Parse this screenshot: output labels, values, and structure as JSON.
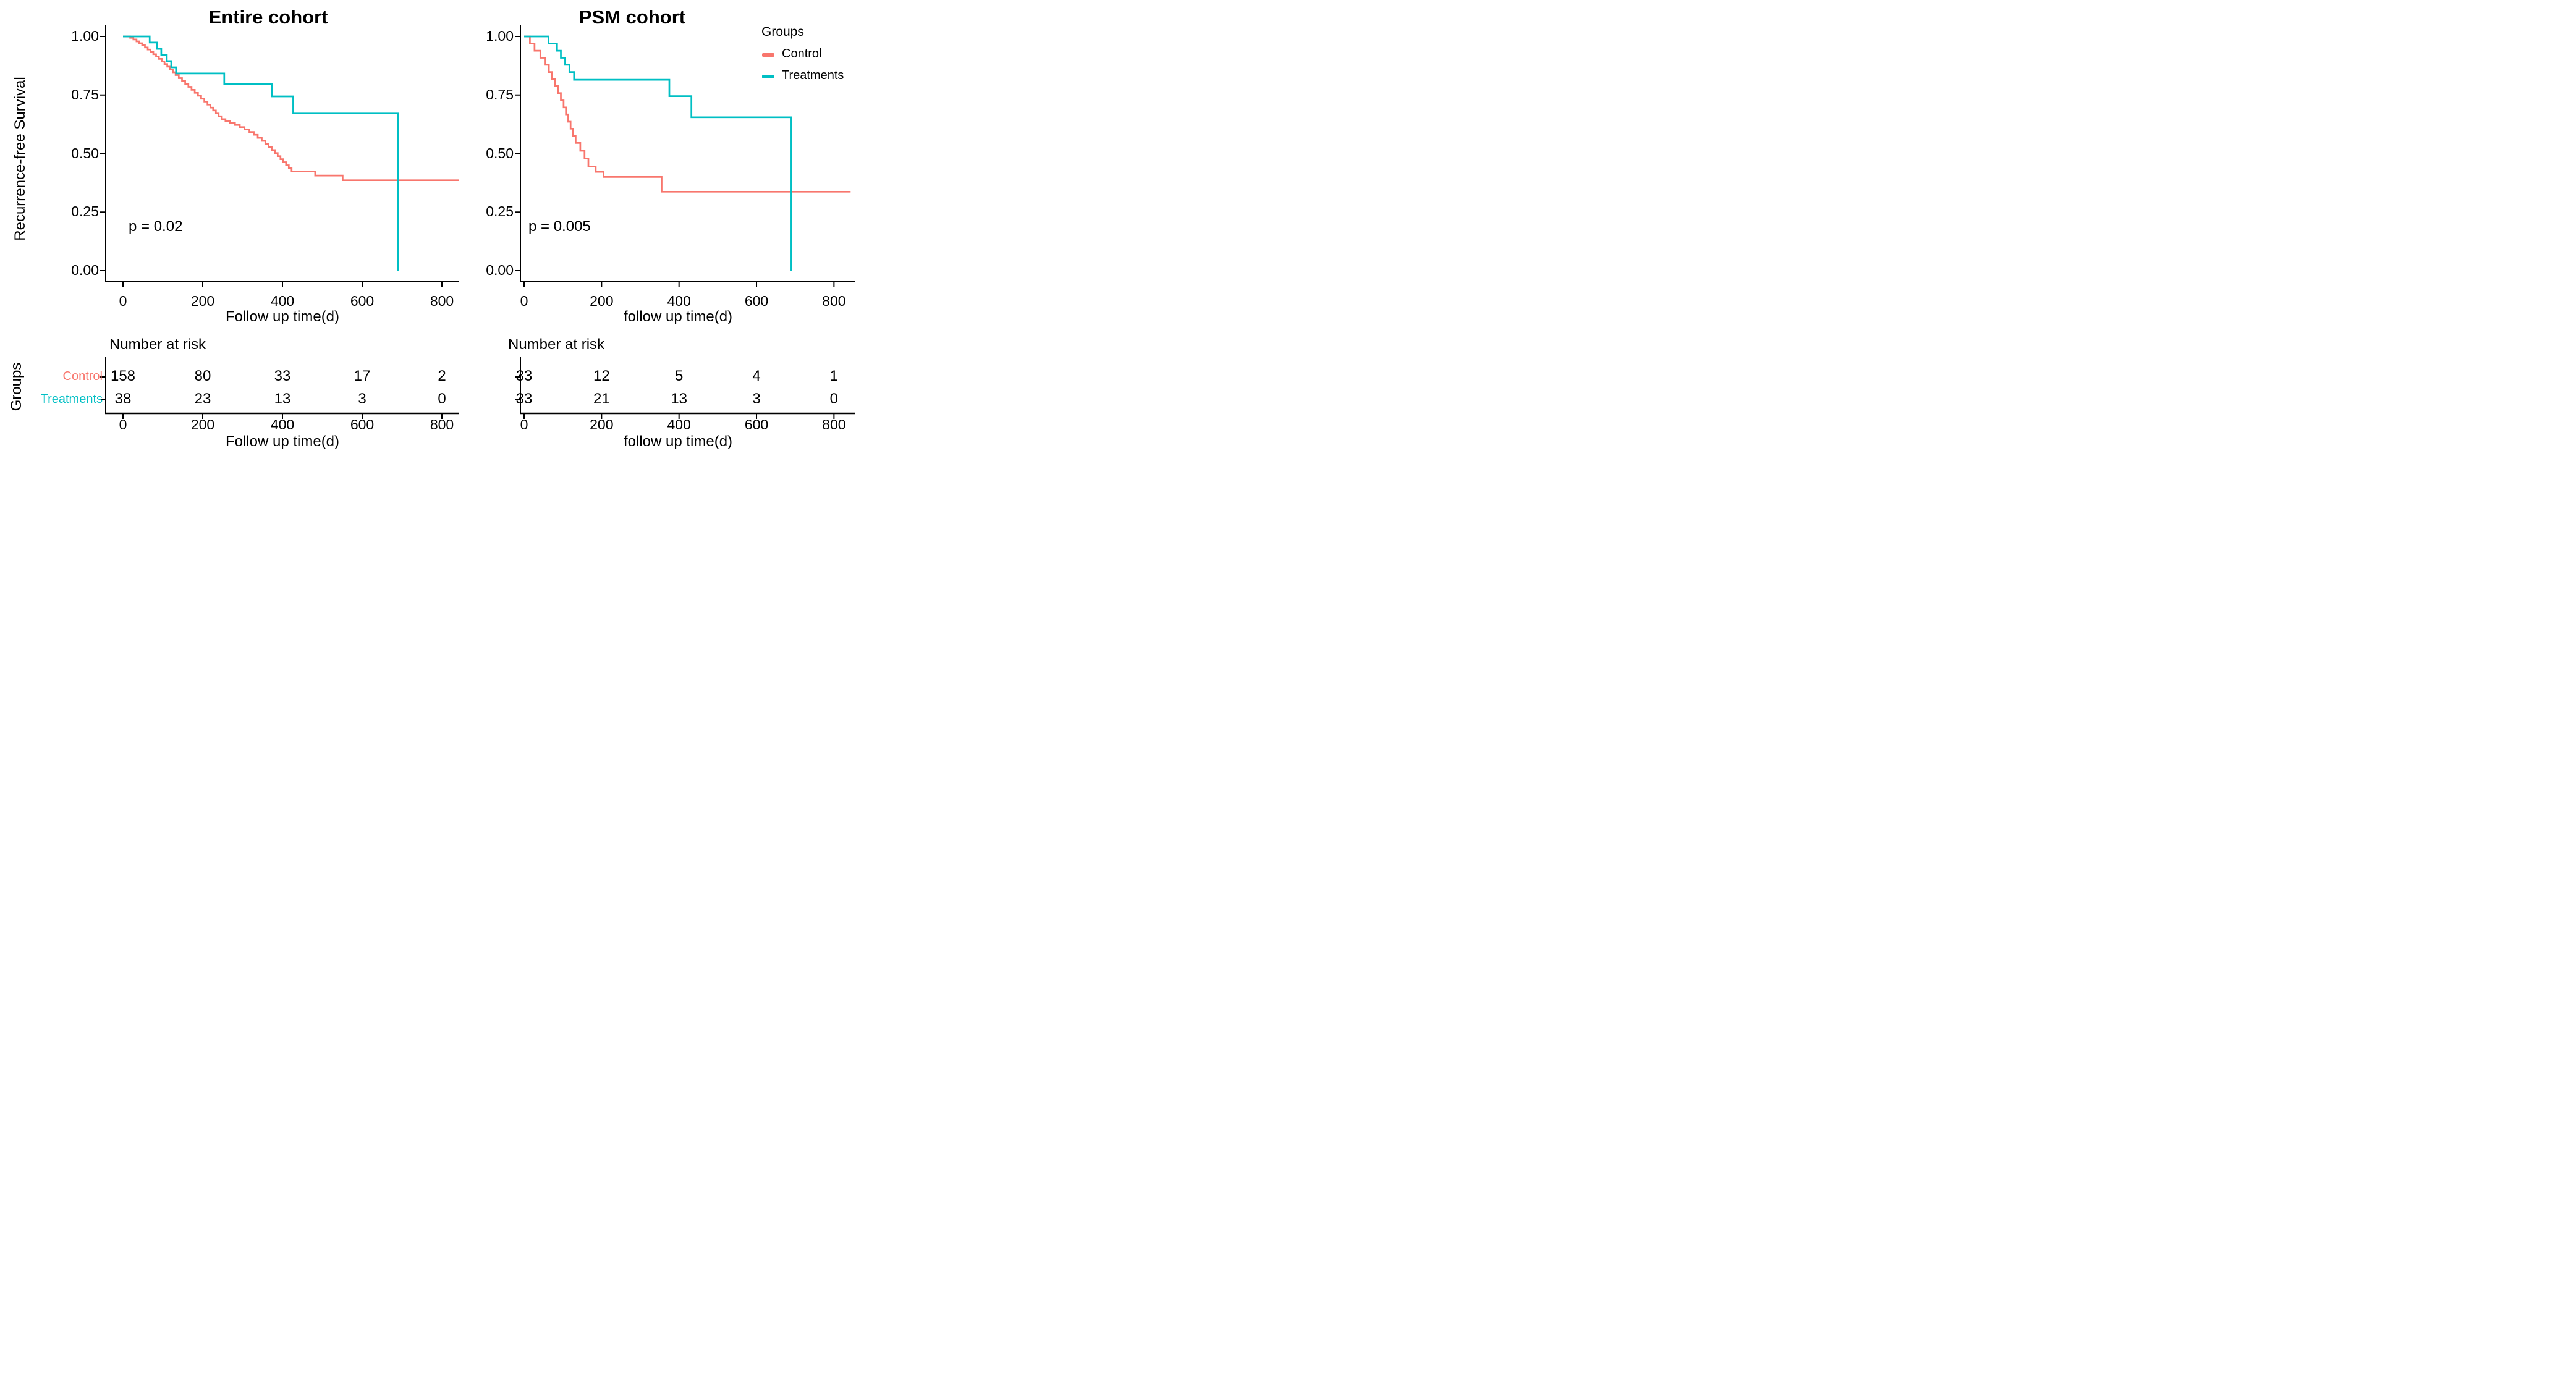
{
  "figure": {
    "background": "#ffffff",
    "text_color": "#000000"
  },
  "legend": {
    "title": "Groups",
    "items": [
      {
        "label": "Control",
        "color": "#F8766D"
      },
      {
        "label": "Treatments",
        "color": "#00BFC4"
      }
    ],
    "position": "top-right"
  },
  "chart_data": [
    {
      "type": "line",
      "subtype": "kaplan-meier-step",
      "title": "Entire cohort",
      "ylabel": "Recurrence-free Survival",
      "xlabel": "Follow up time(d)",
      "p_label": "p = 0.02",
      "xlim": [
        0,
        843
      ],
      "ylim": [
        0,
        1
      ],
      "grid": false,
      "y_ticks": [
        {
          "label": "1.00",
          "value": 1.0
        },
        {
          "label": "0.75",
          "value": 0.75
        },
        {
          "label": "0.50",
          "value": 0.5
        },
        {
          "label": "0.25",
          "value": 0.25
        },
        {
          "label": "0.00",
          "value": 0.0
        }
      ],
      "x_ticks": [
        {
          "label": "0",
          "value": 0
        },
        {
          "label": "200",
          "value": 200
        },
        {
          "label": "400",
          "value": 400
        },
        {
          "label": "600",
          "value": 600
        },
        {
          "label": "800",
          "value": 800
        }
      ],
      "series": [
        {
          "name": "Control",
          "color": "#F8766D",
          "extend_to": 843,
          "steps": [
            [
              0,
              1
            ],
            [
              18,
              0.994
            ],
            [
              26,
              0.987
            ],
            [
              34,
              0.979
            ],
            [
              41,
              0.971
            ],
            [
              48,
              0.962
            ],
            [
              55,
              0.953
            ],
            [
              62,
              0.944
            ],
            [
              69,
              0.934
            ],
            [
              76,
              0.924
            ],
            [
              83,
              0.914
            ],
            [
              90,
              0.904
            ],
            [
              97,
              0.893
            ],
            [
              104,
              0.882
            ],
            [
              111,
              0.871
            ],
            [
              118,
              0.859
            ],
            [
              125,
              0.847
            ],
            [
              132,
              0.835
            ],
            [
              140,
              0.822
            ],
            [
              148,
              0.81
            ],
            [
              156,
              0.797
            ],
            [
              164,
              0.785
            ],
            [
              172,
              0.772
            ],
            [
              180,
              0.759
            ],
            [
              188,
              0.747
            ],
            [
              196,
              0.734
            ],
            [
              204,
              0.722
            ],
            [
              212,
              0.709
            ],
            [
              219,
              0.696
            ],
            [
              226,
              0.684
            ],
            [
              233,
              0.671
            ],
            [
              240,
              0.659
            ],
            [
              248,
              0.647
            ],
            [
              257,
              0.638
            ],
            [
              268,
              0.63
            ],
            [
              281,
              0.622
            ],
            [
              293,
              0.613
            ],
            [
              305,
              0.603
            ],
            [
              317,
              0.592
            ],
            [
              328,
              0.58
            ],
            [
              338,
              0.567
            ],
            [
              348,
              0.554
            ],
            [
              357,
              0.541
            ],
            [
              365,
              0.528
            ],
            [
              373,
              0.515
            ],
            [
              381,
              0.502
            ],
            [
              388,
              0.489
            ],
            [
              395,
              0.476
            ],
            [
              402,
              0.463
            ],
            [
              409,
              0.45
            ],
            [
              416,
              0.437
            ],
            [
              423,
              0.424
            ],
            [
              482,
              0.406
            ],
            [
              551,
              0.386
            ]
          ]
        },
        {
          "name": "Treatments",
          "color": "#00BFC4",
          "extend_to": null,
          "steps": [
            [
              0,
              1
            ],
            [
              67,
              0.974
            ],
            [
              85,
              0.947
            ],
            [
              96,
              0.921
            ],
            [
              110,
              0.895
            ],
            [
              121,
              0.868
            ],
            [
              133,
              0.842
            ],
            [
              254,
              0.797
            ],
            [
              374,
              0.744
            ],
            [
              427,
              0.671
            ],
            [
              690,
              0
            ]
          ]
        }
      ],
      "risk_table": {
        "title": "Number at risk",
        "ylabel": "Groups",
        "xlabel": "Follow up time(d)",
        "show_row_labels": true,
        "rows": [
          {
            "label": "Control",
            "color": "#F8766D",
            "values": [
              158,
              80,
              33,
              17,
              2
            ]
          },
          {
            "label": "Treatments",
            "color": "#00BFC4",
            "values": [
              38,
              23,
              13,
              3,
              0
            ]
          }
        ]
      }
    },
    {
      "type": "line",
      "subtype": "kaplan-meier-step",
      "title": "PSM cohort",
      "ylabel": "",
      "xlabel": "follow up time(d)",
      "p_label": "p = 0.005",
      "xlim": [
        0,
        843
      ],
      "ylim": [
        0,
        1
      ],
      "grid": false,
      "y_ticks": [
        {
          "label": "1.00",
          "value": 1.0
        },
        {
          "label": "0.75",
          "value": 0.75
        },
        {
          "label": "0.50",
          "value": 0.5
        },
        {
          "label": "0.25",
          "value": 0.25
        },
        {
          "label": "0.00",
          "value": 0.0
        }
      ],
      "x_ticks": [
        {
          "label": "0",
          "value": 0
        },
        {
          "label": "200",
          "value": 200
        },
        {
          "label": "400",
          "value": 400
        },
        {
          "label": "600",
          "value": 600
        },
        {
          "label": "800",
          "value": 800
        }
      ],
      "series": [
        {
          "name": "Control",
          "color": "#F8766D",
          "extend_to": 843,
          "steps": [
            [
              0,
              1
            ],
            [
              15,
              0.97
            ],
            [
              27,
              0.939
            ],
            [
              42,
              0.909
            ],
            [
              55,
              0.879
            ],
            [
              64,
              0.848
            ],
            [
              72,
              0.818
            ],
            [
              80,
              0.788
            ],
            [
              88,
              0.758
            ],
            [
              95,
              0.727
            ],
            [
              102,
              0.697
            ],
            [
              108,
              0.667
            ],
            [
              114,
              0.636
            ],
            [
              120,
              0.606
            ],
            [
              126,
              0.576
            ],
            [
              133,
              0.545
            ],
            [
              145,
              0.512
            ],
            [
              156,
              0.479
            ],
            [
              166,
              0.445
            ],
            [
              185,
              0.422
            ],
            [
              205,
              0.4
            ],
            [
              355,
              0.337
            ]
          ]
        },
        {
          "name": "Treatments",
          "color": "#00BFC4",
          "extend_to": null,
          "steps": [
            [
              0,
              1
            ],
            [
              63,
              0.97
            ],
            [
              85,
              0.939
            ],
            [
              95,
              0.909
            ],
            [
              106,
              0.879
            ],
            [
              117,
              0.848
            ],
            [
              129,
              0.815
            ],
            [
              375,
              0.745
            ],
            [
              432,
              0.655
            ],
            [
              690,
              0
            ]
          ]
        }
      ],
      "risk_table": {
        "title": "Number at risk",
        "ylabel": "",
        "xlabel": "follow up time(d)",
        "show_row_labels": false,
        "rows": [
          {
            "values": [
              33,
              12,
              5,
              4,
              1
            ]
          },
          {
            "values": [
              33,
              21,
              13,
              3,
              0
            ]
          }
        ]
      }
    }
  ]
}
